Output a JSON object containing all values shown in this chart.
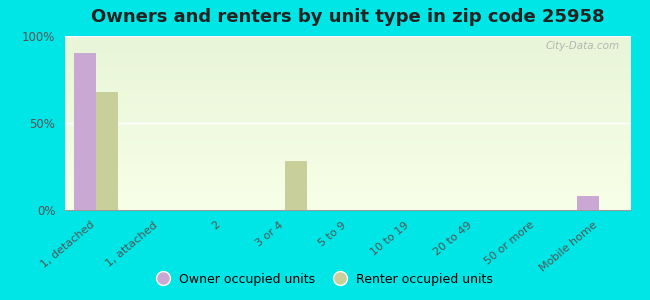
{
  "title": "Owners and renters by unit type in zip code 25958",
  "categories": [
    "1, detached",
    "1, attached",
    "2",
    "3 or 4",
    "5 to 9",
    "10 to 19",
    "20 to 49",
    "50 or more",
    "Mobile home"
  ],
  "owner_values": [
    90,
    0,
    0,
    0,
    0,
    0,
    0,
    0,
    8
  ],
  "renter_values": [
    68,
    0,
    0,
    28,
    0,
    0,
    0,
    0,
    0
  ],
  "owner_color": "#c9a9d4",
  "renter_color": "#c8cf9a",
  "background_color": "#00e5e5",
  "ylim": [
    0,
    100
  ],
  "yticks": [
    0,
    50,
    100
  ],
  "ytick_labels": [
    "0%",
    "50%",
    "100%"
  ],
  "legend_owner": "Owner occupied units",
  "legend_renter": "Renter occupied units",
  "bar_width": 0.35,
  "title_fontsize": 13
}
